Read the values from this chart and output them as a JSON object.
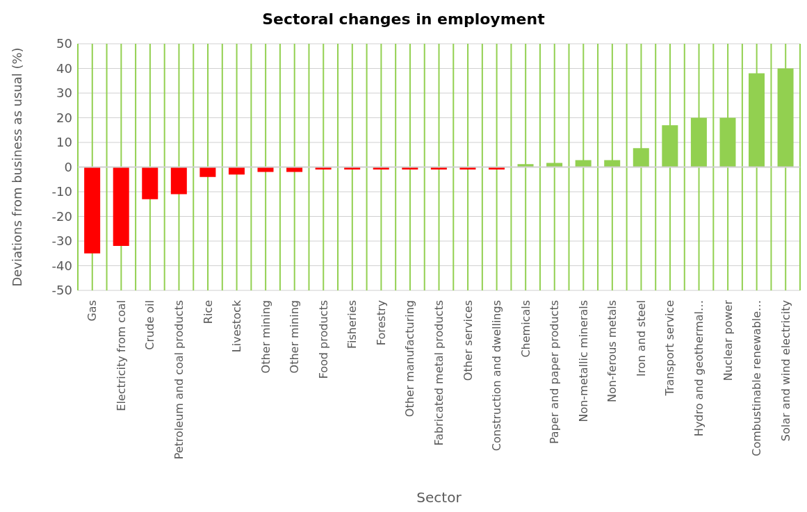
{
  "chart_data": {
    "type": "bar",
    "title": "Sectoral changes in employment",
    "xlabel": "Sector",
    "ylabel": "Deviations from business as usual (%)",
    "categories": [
      "Gas",
      "Electricity from coal",
      "Crude oil",
      "Petroleum and coal products",
      "Rice",
      "Livestock",
      "Other mining",
      "Other mining",
      "Food products",
      "Fisheries",
      "Forestry",
      "Other manufacturing",
      "Fabricated metal products",
      "Other services",
      "Construction and dwellings",
      "Chemicals",
      "Paper and paper products",
      "Non-metallic minerals",
      "Non-ferous metals",
      "Iron and steel",
      "Transport service",
      "Hydro and geothermal…",
      "Nuclear power",
      "Combustinable renewable…",
      "Solar and wind electricity"
    ],
    "values": [
      -35,
      -32,
      -13,
      -11,
      -4,
      -3,
      -2,
      -2,
      -1,
      -1,
      -1,
      -1,
      -1,
      -1,
      -1,
      1.2,
      1.7,
      2.8,
      2.8,
      7.7,
      17,
      20,
      20,
      38,
      40
    ],
    "colors": [
      "#ff0000",
      "#ff0000",
      "#ff0000",
      "#ff0000",
      "#ff0000",
      "#ff0000",
      "#ff0000",
      "#ff0000",
      "#ff0000",
      "#ff0000",
      "#ff0000",
      "#ff0000",
      "#ff0000",
      "#ff0000",
      "#ff0000",
      "#92d050",
      "#92d050",
      "#92d050",
      "#92d050",
      "#92d050",
      "#92d050",
      "#92d050",
      "#92d050",
      "#92d050",
      "#92d050"
    ],
    "ylim": [
      -50,
      50
    ],
    "yticks": [
      -50,
      -40,
      -30,
      -20,
      -10,
      0,
      10,
      20,
      30,
      40,
      50
    ],
    "grid": true
  }
}
